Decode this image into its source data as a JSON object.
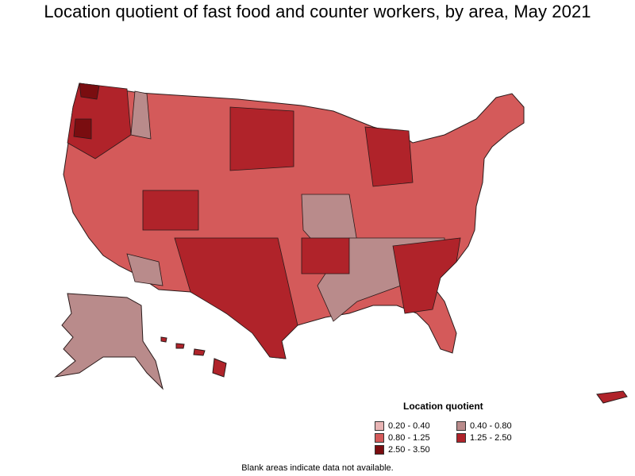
{
  "title": "Location quotient of fast food and counter workers, by area, May 2021",
  "legend": {
    "title": "Location quotient",
    "items": [
      {
        "label": "0.20 - 0.40",
        "color": "#e8b4b4"
      },
      {
        "label": "0.40 - 0.80",
        "color": "#b98b8b"
      },
      {
        "label": "0.80 - 1.25",
        "color": "#d45a5a"
      },
      {
        "label": "1.25 - 2.50",
        "color": "#b0232a"
      },
      {
        "label": "2.50 - 3.50",
        "color": "#7a0d10"
      }
    ]
  },
  "footnote": "Blank areas indicate data not available.",
  "colors": {
    "border": "#2a1a1a",
    "background": "#ffffff"
  }
}
